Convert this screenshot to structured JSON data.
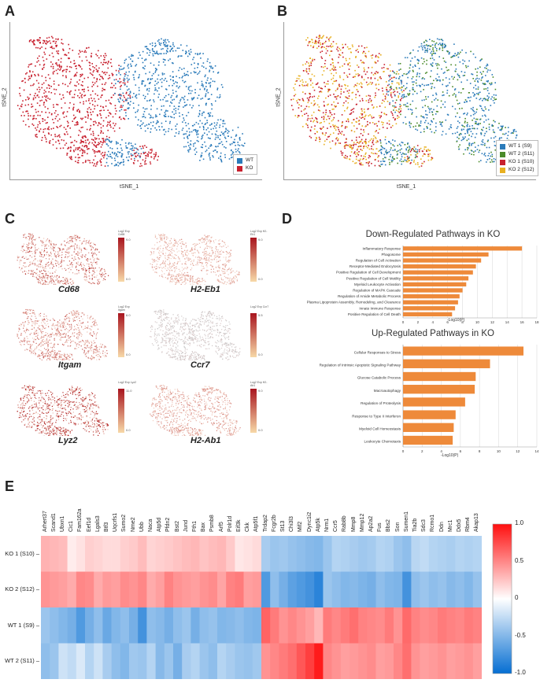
{
  "panels": {
    "a": "A",
    "b": "B",
    "c": "C",
    "d": "D",
    "e": "E"
  },
  "tsne": {
    "x_label": "tSNE_1",
    "y_label": "tSNE_2",
    "legend_a": [
      {
        "label": "WT",
        "color": "#2b7bba"
      },
      {
        "label": "KO",
        "color": "#c8202e"
      }
    ],
    "legend_b": [
      {
        "label": "WT 1 (S9)",
        "color": "#2b7bba"
      },
      {
        "label": "WT 2 (S11)",
        "color": "#4a8a2a"
      },
      {
        "label": "KO 1 (S10)",
        "color": "#c8202e"
      },
      {
        "label": "KO 2 (S12)",
        "color": "#e8b020"
      }
    ]
  },
  "feature_maps": {
    "legend_title_prefix": "Log2 Exp",
    "items": [
      {
        "gene": "Cd68",
        "max": "9.0",
        "min": "0.0",
        "intensity": 0.55
      },
      {
        "gene": "H2-Eb1",
        "max": "9.0",
        "min": "0.0",
        "intensity": 0.25
      },
      {
        "gene": "Itgam",
        "max": "6.0",
        "min": "0.0",
        "intensity": 0.45
      },
      {
        "gene": "Ccr7",
        "max": "5.5",
        "min": "0.0",
        "intensity": 0.05
      },
      {
        "gene": "Lyz2",
        "max": "11.0",
        "min": "0.0",
        "intensity": 0.8
      },
      {
        "gene": "H2-Ab1",
        "max": "9.0",
        "min": "0.0",
        "intensity": 0.3
      }
    ]
  },
  "chart_data": [
    {
      "type": "bar",
      "orientation": "horizontal",
      "title": "Down-Regulated Pathways in KO",
      "xlabel": "-Log10(P)",
      "xlim": [
        0,
        18
      ],
      "xticks": [
        0,
        2,
        4,
        6,
        8,
        10,
        12,
        14,
        16,
        18
      ],
      "color": "#ee8a3a",
      "categories": [
        "Inflammatory Response",
        "Phagosome",
        "Regulation of Cell Activation",
        "Receptor-Mediated Endocytosis",
        "Positive Regulation of Cell Development",
        "Positive Regulation of Cell Motility",
        "Myeloid Leukocyte Activation",
        "Regulation of MAPK Cascade",
        "Regulation of Amide Metabolic Process",
        "Plasma Lipoprotein Assembly, Remodeling, and Clearance",
        "Innate Immune Response",
        "Positive Regulation of Cell Death"
      ],
      "values": [
        16.0,
        11.5,
        10.5,
        9.8,
        9.4,
        8.8,
        8.5,
        8.0,
        7.6,
        7.4,
        7.0,
        6.6
      ]
    },
    {
      "type": "bar",
      "orientation": "horizontal",
      "title": "Up-Regulated Pathways in KO",
      "xlabel": "-Log10(P)",
      "xlim": [
        0,
        14
      ],
      "xticks": [
        0,
        2,
        4,
        6,
        8,
        10,
        12,
        14
      ],
      "color": "#ee8a3a",
      "categories": [
        "Cellular Responses to Stress",
        "Regulation of Intrinsic Apoptotic Signaling Pathway",
        "Glucose Catabolic Process",
        "Macroautophagy",
        "Regulation of Proteolysis",
        "Response to Type II Interferon",
        "Myeloid Cell Homeostasis",
        "Leukocyte Chemotaxis"
      ],
      "values": [
        12.6,
        9.1,
        7.6,
        7.5,
        6.5,
        5.5,
        5.3,
        5.2
      ]
    },
    {
      "type": "heatmap",
      "columns": [
        "Arhert37",
        "Scand1",
        "Ubxn1",
        "Cic1",
        "Fam162a",
        "Eef1d",
        "Lgals3",
        "Btf3",
        "Uqcrfs1",
        "Sumo2",
        "Nme2",
        "Ubb",
        "Naca",
        "Atp5d",
        "Pfdn2",
        "Bst2",
        "Jund",
        "Fth1",
        "Bax",
        "Psmb8",
        "Arf5",
        "Polr1d",
        "Eif3k",
        "Ckk",
        "Atp5f1",
        "Trdap2",
        "Fcgr2b",
        "St13",
        "Chi3l3",
        "Mif2",
        "Dync1i2",
        "Atp5k",
        "Nrm1",
        "Ccr5",
        "Rab8b",
        "Mmp8",
        "Mmp12",
        "Ap2a2",
        "Fus",
        "Bbs2",
        "Son",
        "Sumen1",
        "Tia2b",
        "Sdc3",
        "Rcmo1",
        "Ddn",
        "Mrc1",
        "Ddx5",
        "Rbm4",
        "Akap13"
      ],
      "rows": [
        "KO 1 (S10)",
        "KO 2 (S12)",
        "WT 1 (S9)",
        "WT 2 (S11)"
      ],
      "colorbar": {
        "min": -1.0,
        "max": 1.0,
        "ticks": [
          "1.0",
          "0.5",
          "0",
          "-0.5",
          "-1.0"
        ]
      },
      "values": [
        [
          0.32,
          0.3,
          0.28,
          0.08,
          0.12,
          0.2,
          0.18,
          0.15,
          0.15,
          0.2,
          0.22,
          0.28,
          0.18,
          0.2,
          0.22,
          0.25,
          0.28,
          0.3,
          0.25,
          0.28,
          0.3,
          0.22,
          0.1,
          0.12,
          0.15,
          -0.35,
          -0.4,
          -0.38,
          -0.42,
          -0.45,
          -0.48,
          -0.5,
          -0.4,
          -0.3,
          -0.32,
          -0.35,
          -0.38,
          -0.36,
          -0.3,
          -0.32,
          -0.4,
          -0.45,
          -0.28,
          -0.25,
          -0.3,
          -0.32,
          -0.34,
          -0.3,
          -0.32,
          -0.3
        ],
        [
          0.45,
          0.42,
          0.4,
          0.35,
          0.5,
          0.48,
          0.35,
          0.42,
          0.4,
          0.48,
          0.45,
          0.5,
          0.35,
          0.4,
          0.52,
          0.45,
          0.42,
          0.4,
          0.45,
          0.48,
          0.38,
          0.52,
          0.55,
          0.4,
          0.42,
          -0.7,
          -0.45,
          -0.55,
          -0.65,
          -0.7,
          -0.75,
          -0.85,
          -0.4,
          -0.45,
          -0.5,
          -0.48,
          -0.52,
          -0.55,
          -0.45,
          -0.5,
          -0.52,
          -0.75,
          -0.45,
          -0.4,
          -0.45,
          -0.42,
          -0.48,
          -0.45,
          -0.5,
          -0.42
        ],
        [
          -0.4,
          -0.45,
          -0.5,
          -0.55,
          -0.7,
          -0.55,
          -0.45,
          -0.6,
          -0.5,
          -0.45,
          -0.55,
          -0.75,
          -0.45,
          -0.48,
          -0.55,
          -0.45,
          -0.4,
          -0.55,
          -0.45,
          -0.42,
          -0.5,
          -0.48,
          -0.45,
          -0.5,
          -0.52,
          0.65,
          0.55,
          0.45,
          0.5,
          0.45,
          0.4,
          0.3,
          0.55,
          0.5,
          0.55,
          0.6,
          0.52,
          0.5,
          0.48,
          0.55,
          0.45,
          0.62,
          0.52,
          0.48,
          0.5,
          0.55,
          0.52,
          0.5,
          0.55,
          0.52
        ],
        [
          -0.45,
          -0.4,
          -0.2,
          -0.25,
          -0.15,
          -0.3,
          -0.2,
          -0.35,
          -0.45,
          -0.5,
          -0.38,
          -0.4,
          -0.3,
          -0.48,
          -0.4,
          -0.55,
          -0.35,
          -0.3,
          -0.4,
          -0.45,
          -0.3,
          -0.35,
          -0.4,
          -0.42,
          -0.38,
          0.45,
          0.5,
          0.55,
          0.6,
          0.7,
          0.8,
          0.95,
          0.5,
          0.45,
          0.4,
          0.42,
          0.45,
          0.48,
          0.4,
          0.42,
          0.5,
          0.6,
          0.45,
          0.4,
          0.42,
          0.45,
          0.4,
          0.42,
          0.45,
          0.4
        ]
      ]
    }
  ]
}
